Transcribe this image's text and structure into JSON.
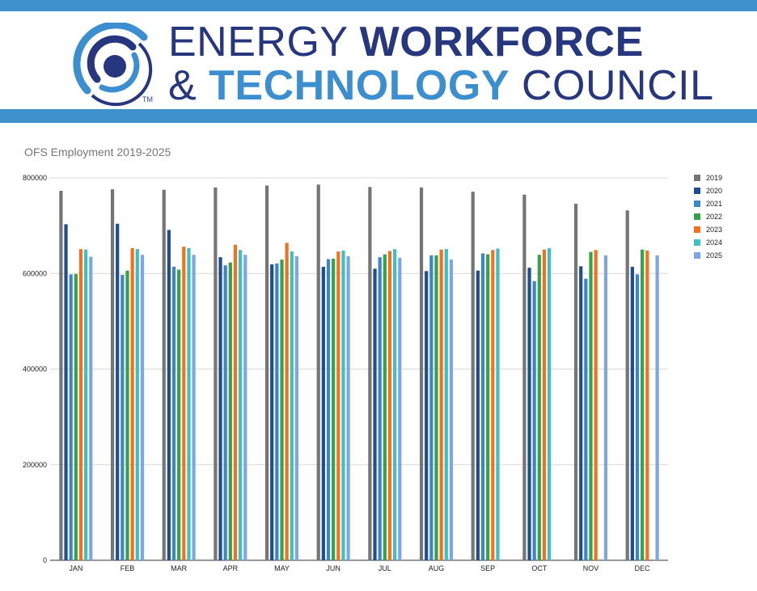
{
  "header": {
    "brand_line1_light": "ENERGY ",
    "brand_line1_bold": "WORKFORCE",
    "brand_line2_amp": "& ",
    "brand_line2_bold": "TECHNOLOGY",
    "brand_line2_light": " COUNCIL",
    "trademark": "TM"
  },
  "colors": {
    "band": "#3f91cb",
    "brand_dark": "#27377f",
    "brand_light": "#3b8fd0",
    "grid": "#d9d9d9"
  },
  "chart_data": {
    "type": "bar",
    "title": "OFS Employment 2019-2025",
    "xlabel": "",
    "ylabel": "",
    "ylim": [
      0,
      800000
    ],
    "yticks": [
      "0",
      "200000",
      "400000",
      "600000",
      "800000"
    ],
    "grid": true,
    "legend_position": "right",
    "categories": [
      "JAN",
      "FEB",
      "MAR",
      "APR",
      "MAY",
      "JUN",
      "JUL",
      "AUG",
      "SEP",
      "OCT",
      "NOV",
      "DEC"
    ],
    "series": [
      {
        "name": "2019",
        "color": "#757575",
        "values": [
          773000,
          776000,
          775000,
          780000,
          784000,
          786000,
          781000,
          780000,
          771000,
          765000,
          746000,
          732000
        ]
      },
      {
        "name": "2020",
        "color": "#1f4e8f",
        "values": [
          703000,
          704000,
          691000,
          634000,
          619000,
          614000,
          610000,
          605000,
          606000,
          612000,
          615000,
          614000
        ]
      },
      {
        "name": "2021",
        "color": "#3d86c6",
        "values": [
          598000,
          597000,
          614000,
          617000,
          621000,
          630000,
          634000,
          638000,
          642000,
          584000,
          589000,
          598000
        ]
      },
      {
        "name": "2022",
        "color": "#37a04a",
        "values": [
          599000,
          606000,
          608000,
          623000,
          629000,
          631000,
          640000,
          638000,
          640000,
          639000,
          645000,
          650000
        ]
      },
      {
        "name": "2023",
        "color": "#f1711c",
        "values": [
          651000,
          653000,
          656000,
          660000,
          664000,
          646000,
          647000,
          650000,
          649000,
          650000,
          649000,
          648000
        ]
      },
      {
        "name": "2024",
        "color": "#3fbfbf",
        "values": [
          650000,
          651000,
          653000,
          649000,
          646000,
          648000,
          651000,
          651000,
          652000,
          653000,
          null,
          null
        ]
      },
      {
        "name": "2025",
        "color": "#7ba7e6",
        "values": [
          635000,
          639000,
          639000,
          639000,
          636000,
          636000,
          633000,
          629000,
          null,
          null,
          638000,
          638000
        ]
      }
    ]
  }
}
